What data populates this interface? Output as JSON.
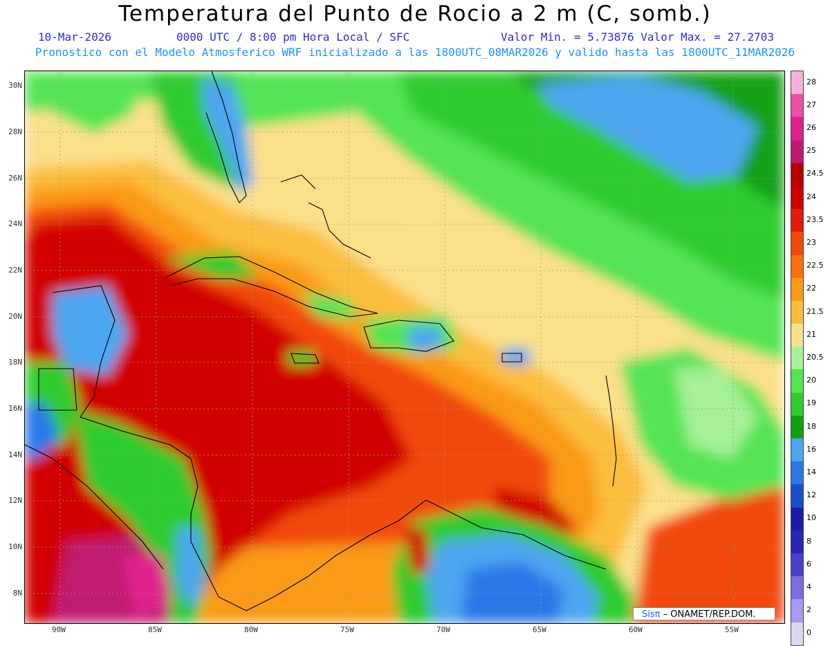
{
  "header": {
    "title": "Temperatura del Punto de Rocio a 2 m (C, somb.)",
    "date": "10-Mar-2026",
    "time": "0000 UTC / 8:00 pm Hora Local / SFC",
    "minmax": "Valor Min. = 5.73876  Valor Max. = 27.2703",
    "model": "Pronostico con el Modelo Atmosferico WRF inicializado a las 1800UTC_08MAR2026 y valido hasta las  1800UTC_11MAR2026"
  },
  "axes": {
    "lat_labels": [
      "30N",
      "28N",
      "26N",
      "24N",
      "22N",
      "20N",
      "18N",
      "16N",
      "14N",
      "12N",
      "10N",
      "8N"
    ],
    "lon_labels": [
      "90W",
      "85W",
      "80W",
      "75W",
      "70W",
      "65W",
      "60W",
      "55W"
    ]
  },
  "colorbar": {
    "labels": [
      "28",
      "27",
      "26",
      "25",
      "24.5",
      "24",
      "23.5",
      "23",
      "22.5",
      "22",
      "21.5",
      "21",
      "20.5",
      "20",
      "19",
      "18",
      "16",
      "14",
      "12",
      "10",
      "8",
      "6",
      "4",
      "2",
      "0"
    ],
    "colors": [
      "#f4b2d6",
      "#ea4fa8",
      "#e0208f",
      "#c01a70",
      "#b80000",
      "#d10000",
      "#e41a0a",
      "#f24a0a",
      "#f87010",
      "#fa9a14",
      "#fbbd3c",
      "#fbe08a",
      "#a8f09a",
      "#54e454",
      "#2fcb2f",
      "#14a014",
      "#4ea6f0",
      "#2a78e8",
      "#1a4ed0",
      "#1c1aa8",
      "#2a24b8",
      "#4a40cc",
      "#7a6ee0",
      "#a898f0",
      "#d8d8f4"
    ]
  },
  "credit": {
    "brand": "Sisπ",
    "text": "– ONAMET/REP.DOM."
  }
}
